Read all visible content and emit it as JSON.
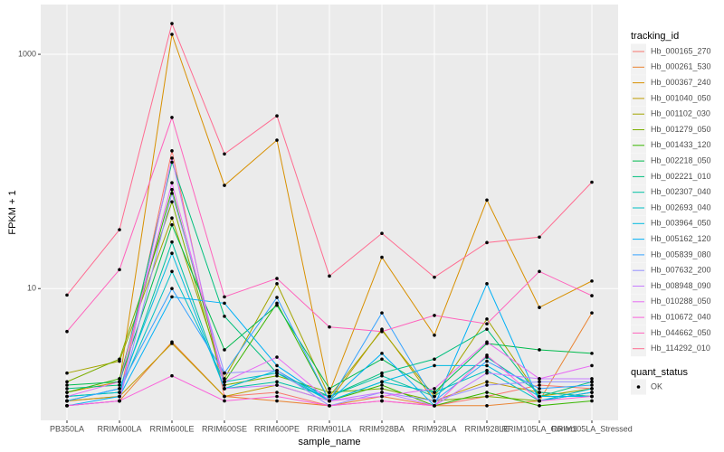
{
  "chart_data": {
    "type": "line",
    "x_label": "sample_name",
    "y_label": "FPKM + 1",
    "categories": [
      "PB350LA",
      "RRIM600LA",
      "RRIM600LE",
      "RRIM600SE",
      "RRIM600PE",
      "RRIM901LA",
      "RRIM928BA",
      "RRIM928LA",
      "RRIM928LE",
      "RRIM105LA_Control",
      "RRIM105LA_Stressed"
    ],
    "log_y": true,
    "ylim": [
      0.75,
      2660
    ],
    "yticks": [
      10,
      1000
    ],
    "grid": true,
    "legend_title": "tracking_id",
    "legend2_title": "quant_status",
    "legend2_items": [
      "OK"
    ],
    "series": [
      {
        "name": "Hb_000165_270",
        "color": "#F8766D",
        "values": [
          1.1,
          1.2,
          150,
          1.2,
          1.3,
          1.0,
          1.1,
          1.0,
          1.2,
          1.5,
          1.4
        ]
      },
      {
        "name": "Hb_000261_530",
        "color": "#EA8331",
        "values": [
          1.0,
          1.1,
          3.5,
          1.2,
          1.1,
          1.0,
          1.2,
          1.0,
          1.0,
          1.1,
          6.2
        ]
      },
      {
        "name": "Hb_000367_240",
        "color": "#D89000",
        "values": [
          1.3,
          1.6,
          1480,
          76,
          185,
          1.3,
          18.5,
          4.0,
          57,
          6.9,
          11.6
        ]
      },
      {
        "name": "Hb_001040_050",
        "color": "#C09B00",
        "values": [
          1.1,
          1.2,
          3.4,
          1.2,
          1.5,
          1.1,
          4.5,
          1.1,
          1.6,
          1.3,
          1.2
        ]
      },
      {
        "name": "Hb_001102_030",
        "color": "#A3A500",
        "values": [
          1.9,
          2.4,
          40,
          1.7,
          11,
          1.2,
          4.4,
          1.2,
          5.5,
          1.2,
          1.4
        ]
      },
      {
        "name": "Hb_001279_050",
        "color": "#7CAE00",
        "values": [
          1.6,
          2.5,
          55,
          1.5,
          1.8,
          1.3,
          1.4,
          1.1,
          1.2,
          1.1,
          1.3
        ]
      },
      {
        "name": "Hb_001433_120",
        "color": "#39B600",
        "values": [
          1.3,
          1.7,
          70,
          1.6,
          7.5,
          1.1,
          1.5,
          1.0,
          1.3,
          1.0,
          1.1
        ]
      },
      {
        "name": "Hb_002218_050",
        "color": "#00BB4E",
        "values": [
          1.5,
          1.6,
          35,
          3.0,
          7.2,
          1.4,
          2.5,
          1.3,
          3.4,
          3.0,
          2.8
        ]
      },
      {
        "name": "Hb_002221_010",
        "color": "#00BF7D",
        "values": [
          1.4,
          1.5,
          120,
          5.8,
          1.9,
          1.2,
          1.9,
          2.5,
          4.5,
          1.2,
          1.6
        ]
      },
      {
        "name": "Hb_002307_040",
        "color": "#00C1A3",
        "values": [
          1.2,
          1.3,
          25,
          1.4,
          1.6,
          1.2,
          1.8,
          1.2,
          2.6,
          1.3,
          1.2
        ]
      },
      {
        "name": "Hb_002693_040",
        "color": "#00BFC4",
        "values": [
          1.2,
          1.3,
          14,
          1.6,
          1.9,
          1.1,
          1.6,
          1.3,
          2.0,
          1.1,
          1.4
        ]
      },
      {
        "name": "Hb_003964_050",
        "color": "#00BAE0",
        "values": [
          1.1,
          1.4,
          20,
          1.4,
          2.0,
          1.1,
          1.6,
          2.2,
          2.2,
          1.2,
          1.2
        ]
      },
      {
        "name": "Hb_005162_120",
        "color": "#00B0F6",
        "values": [
          1.0,
          1.2,
          8.5,
          7.5,
          2.2,
          1.1,
          2.8,
          1.0,
          11,
          1.1,
          1.3
        ]
      },
      {
        "name": "Hb_005839_080",
        "color": "#35A2FF",
        "values": [
          1.1,
          1.4,
          10,
          1.9,
          8.4,
          1.1,
          6.2,
          1.1,
          2.4,
          1.4,
          1.5
        ]
      },
      {
        "name": "Hb_007632_200",
        "color": "#9590FF",
        "values": [
          1.0,
          1.1,
          65,
          1.9,
          2.0,
          1.0,
          1.3,
          1.1,
          1.5,
          1.6,
          1.6
        ]
      },
      {
        "name": "Hb_008948_090",
        "color": "#C77CFF",
        "values": [
          1.0,
          1.1,
          130,
          1.4,
          1.5,
          1.1,
          1.3,
          1.0,
          1.9,
          1.7,
          1.7
        ]
      },
      {
        "name": "Hb_010288_050",
        "color": "#E76BF3",
        "values": [
          1.2,
          1.6,
          80,
          1.6,
          2.6,
          1.1,
          1.2,
          1.4,
          3.5,
          1.7,
          2.2
        ]
      },
      {
        "name": "Hb_010672_040",
        "color": "#FA62DB",
        "values": [
          1.0,
          1.1,
          1.8,
          1.1,
          1.2,
          1.0,
          1.1,
          1.0,
          2.7,
          1.1,
          1.2
        ]
      },
      {
        "name": "Hb_044662_050",
        "color": "#FF62BC",
        "values": [
          4.3,
          14.5,
          289,
          8.5,
          12.2,
          4.7,
          4.3,
          5.9,
          5.0,
          14,
          8.7
        ]
      },
      {
        "name": "Hb_114292_010",
        "color": "#FF6C91",
        "values": [
          8.8,
          31.8,
          1830,
          141,
          298,
          12.8,
          29.6,
          12.5,
          24.7,
          27.5,
          81
        ]
      }
    ]
  }
}
